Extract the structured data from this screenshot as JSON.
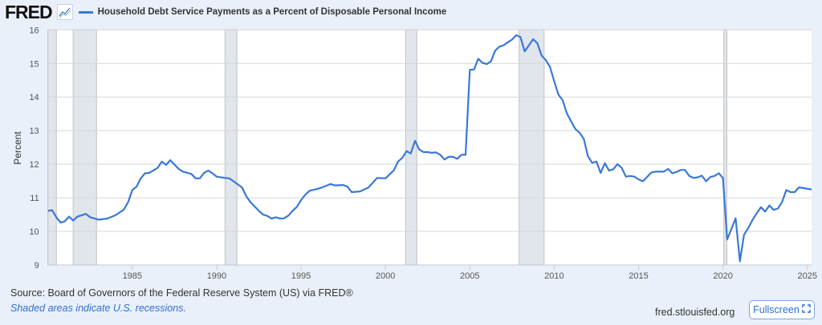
{
  "header": {
    "logo": "FRED",
    "legend_color": "#3a78d8"
  },
  "footer": {
    "source": "Source: Board of Governors of the Federal Reserve System (US) via FRED®",
    "note": "Shaded areas indicate U.S. recessions.",
    "site": "fred.stlouisfed.org",
    "fullscreen_label": "Fullscreen"
  },
  "chart_data": {
    "type": "line",
    "title": "Household Debt Service Payments as a Percent of Disposable Personal Income",
    "xlabel": "",
    "ylabel": "Percent",
    "xlim": [
      1980,
      2025.25
    ],
    "ylim": [
      9,
      16
    ],
    "yticks": [
      9,
      10,
      11,
      12,
      13,
      14,
      15,
      16
    ],
    "xticks": [
      1985,
      1990,
      1995,
      2000,
      2005,
      2010,
      2015,
      2020,
      2025
    ],
    "grid": true,
    "line_color": "#3a78d8",
    "recessions": [
      [
        1980.0,
        1980.5
      ],
      [
        1981.5,
        1982.88
      ],
      [
        1990.5,
        1991.2
      ],
      [
        2001.2,
        2001.86
      ],
      [
        2007.92,
        2009.4
      ],
      [
        2020.05,
        2020.23
      ]
    ],
    "series": [
      {
        "name": "Household Debt Service Payments as a Percent of Disposable Personal Income",
        "x": [
          1980.0,
          1980.25,
          1980.5,
          1980.75,
          1981.0,
          1981.25,
          1981.5,
          1981.75,
          1982.25,
          1982.5,
          1983.0,
          1983.5,
          1984.0,
          1984.5,
          1984.75,
          1985.0,
          1985.25,
          1985.5,
          1985.75,
          1986.0,
          1986.5,
          1986.75,
          1987.0,
          1987.25,
          1987.75,
          1988.0,
          1988.5,
          1988.75,
          1989.0,
          1989.25,
          1989.5,
          1989.75,
          1990.0,
          1990.5,
          1990.75,
          1991.0,
          1991.5,
          1991.75,
          1992.0,
          1992.5,
          1992.75,
          1993.0,
          1993.25,
          1993.5,
          1993.75,
          1994.0,
          1994.25,
          1994.5,
          1994.75,
          1995.0,
          1995.25,
          1995.5,
          1996.0,
          1996.25,
          1996.75,
          1997.0,
          1997.5,
          1997.75,
          1998.0,
          1998.5,
          1999.0,
          1999.5,
          2000.0,
          2000.5,
          2000.75,
          2001.0,
          2001.25,
          2001.5,
          2001.75,
          2002.0,
          2002.25,
          2002.5,
          2002.75,
          2003.0,
          2003.25,
          2003.5,
          2003.75,
          2004.0,
          2004.25,
          2004.5,
          2004.75,
          2005.0,
          2005.25,
          2005.5,
          2005.75,
          2006.0,
          2006.25,
          2006.5,
          2006.75,
          2007.0,
          2007.25,
          2007.5,
          2007.75,
          2008.0,
          2008.25,
          2008.5,
          2008.75,
          2009.0,
          2009.25,
          2009.5,
          2009.75,
          2010.0,
          2010.25,
          2010.5,
          2010.75,
          2011.25,
          2011.5,
          2011.75,
          2012.0,
          2012.25,
          2012.5,
          2012.75,
          2013.0,
          2013.25,
          2013.5,
          2013.75,
          2014.0,
          2014.25,
          2014.5,
          2014.75,
          2015.0,
          2015.25,
          2015.5,
          2015.75,
          2016.0,
          2016.25,
          2016.5,
          2016.75,
          2017.0,
          2017.25,
          2017.5,
          2017.75,
          2018.0,
          2018.25,
          2018.5,
          2018.75,
          2019.0,
          2019.25,
          2019.5,
          2019.75,
          2020.0,
          2020.25,
          2020.5,
          2020.75,
          2021.0,
          2021.25,
          2021.5,
          2021.75,
          2022.0,
          2022.25,
          2022.5,
          2022.75,
          2023.0,
          2023.25,
          2023.5,
          2023.75,
          2024.0,
          2024.25,
          2024.5,
          2024.75,
          2025.0,
          2025.25
        ],
        "values": [
          10.61,
          10.63,
          10.42,
          10.26,
          10.3,
          10.44,
          10.32,
          10.44,
          10.52,
          10.42,
          10.35,
          10.38,
          10.48,
          10.65,
          10.87,
          11.23,
          11.33,
          11.58,
          11.73,
          11.74,
          11.89,
          12.08,
          11.98,
          12.12,
          11.86,
          11.78,
          11.71,
          11.58,
          11.58,
          11.74,
          11.81,
          11.73,
          11.63,
          11.59,
          11.58,
          11.49,
          11.31,
          11.05,
          10.87,
          10.61,
          10.5,
          10.46,
          10.38,
          10.42,
          10.38,
          10.39,
          10.47,
          10.61,
          10.73,
          10.93,
          11.09,
          11.21,
          11.27,
          11.31,
          11.41,
          11.37,
          11.38,
          11.33,
          11.17,
          11.19,
          11.31,
          11.59,
          11.58,
          11.82,
          12.08,
          12.19,
          12.39,
          12.32,
          12.7,
          12.44,
          12.36,
          12.36,
          12.34,
          12.35,
          12.28,
          12.14,
          12.22,
          12.22,
          12.16,
          12.28,
          12.28,
          14.81,
          14.82,
          15.14,
          15.02,
          14.98,
          15.06,
          15.38,
          15.5,
          15.54,
          15.63,
          15.71,
          15.84,
          15.79,
          15.36,
          15.54,
          15.72,
          15.6,
          15.24,
          15.1,
          14.9,
          14.47,
          14.07,
          13.91,
          13.51,
          13.05,
          12.94,
          12.76,
          12.24,
          12.04,
          12.08,
          11.74,
          12.03,
          11.81,
          11.85,
          12.0,
          11.89,
          11.63,
          11.65,
          11.63,
          11.55,
          11.49,
          11.62,
          11.75,
          11.78,
          11.78,
          11.78,
          11.86,
          11.73,
          11.77,
          11.83,
          11.83,
          11.65,
          11.59,
          11.61,
          11.66,
          11.49,
          11.62,
          11.65,
          11.73,
          11.59,
          9.76,
          10.07,
          10.39,
          9.11,
          9.9,
          10.1,
          10.34,
          10.54,
          10.72,
          10.59,
          10.77,
          10.64,
          10.68,
          10.87,
          11.23,
          11.17,
          11.17,
          11.31,
          11.29,
          11.27,
          11.25
        ]
      }
    ]
  }
}
